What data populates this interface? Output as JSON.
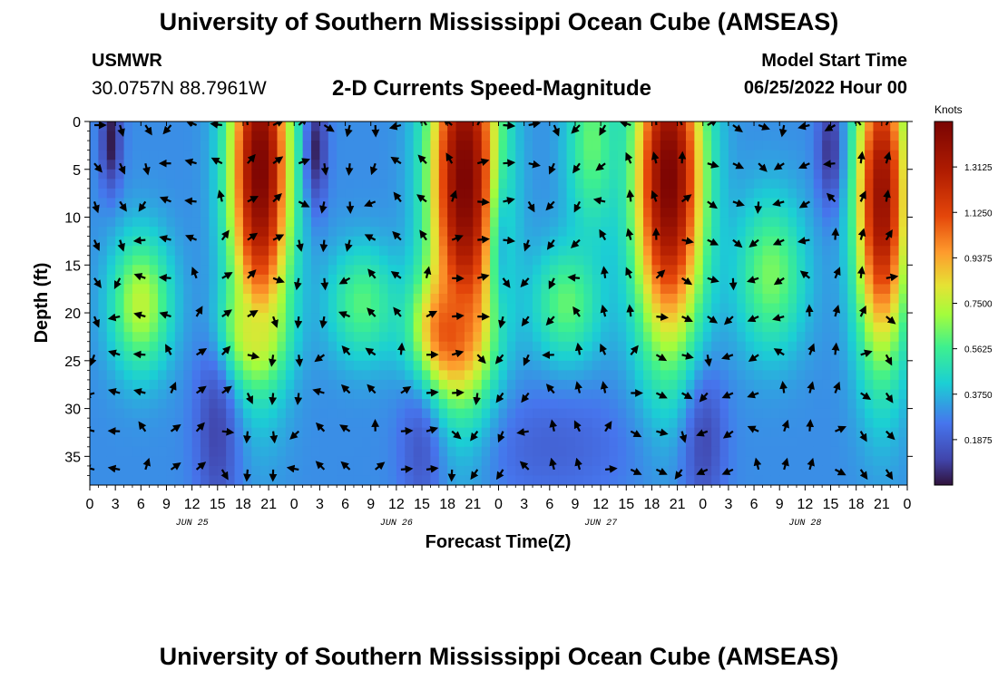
{
  "header": {
    "title": "University of Southern Mississippi Ocean Cube (AMSEAS)",
    "station": "USMWR",
    "coords": "30.0757N  88.7961W",
    "plot_title": "2-D Currents Speed-Magnitude",
    "model_start_label": "Model Start Time",
    "model_start_value": "06/25/2022 Hour 00"
  },
  "footer": {
    "title": "University of Southern Mississippi Ocean Cube (AMSEAS)"
  },
  "chart_data": {
    "type": "heatmap",
    "title": "2-D Currents Speed-Magnitude",
    "xlabel": "Forecast Time(Z)",
    "ylabel": "Depth (ft)",
    "x_range_hours": [
      0,
      96
    ],
    "y_range_ft": [
      0,
      38
    ],
    "x_tick_hours": [
      0,
      3,
      6,
      9,
      12,
      15,
      18,
      21,
      24,
      27,
      30,
      33,
      36,
      39,
      42,
      45,
      48,
      51,
      54,
      57,
      60,
      63,
      66,
      69,
      72,
      75,
      78,
      81,
      84,
      87,
      90,
      93,
      96
    ],
    "x_tick_labels": [
      "0",
      "3",
      "6",
      "9",
      "12",
      "15",
      "18",
      "21",
      "0",
      "3",
      "6",
      "9",
      "12",
      "15",
      "18",
      "21",
      "0",
      "3",
      "6",
      "9",
      "12",
      "15",
      "18",
      "21",
      "0",
      "3",
      "6",
      "9",
      "12",
      "15",
      "18",
      "21",
      "0"
    ],
    "date_labels": [
      {
        "hour": 12,
        "label": "JUN 25"
      },
      {
        "hour": 36,
        "label": "JUN 26"
      },
      {
        "hour": 60,
        "label": "JUN 27"
      },
      {
        "hour": 84,
        "label": "JUN 28"
      }
    ],
    "y_ticks": [
      0,
      5,
      10,
      15,
      20,
      25,
      30,
      35
    ],
    "y_tick_labels": [
      "0",
      "5",
      "10",
      "15",
      "20",
      "25",
      "30",
      "35"
    ],
    "colorbar": {
      "unit": "Knots",
      "min": 0,
      "max": 1.5,
      "tick_values": [
        0.1875,
        0.375,
        0.5625,
        0.75,
        0.9375,
        1.125,
        1.3125
      ],
      "tick_labels": [
        "0.1875",
        "0.3750",
        "0.5625",
        "0.7500",
        "0.9375",
        "1.1250",
        "1.3125"
      ]
    },
    "speed_model": {
      "background": 0.3,
      "cores": [
        {
          "center_hour": 20,
          "center_depth": 5,
          "hour_halfwidth": 3.5,
          "depth_halfwidth": 17,
          "peak": 1.5
        },
        {
          "center_hour": 44,
          "center_depth": 6,
          "hour_halfwidth": 4,
          "depth_halfwidth": 19,
          "peak": 1.5
        },
        {
          "center_hour": 68,
          "center_depth": 6,
          "hour_halfwidth": 4,
          "depth_halfwidth": 17,
          "peak": 1.5
        },
        {
          "center_hour": 93,
          "center_depth": 8,
          "hour_halfwidth": 3,
          "depth_halfwidth": 16,
          "peak": 1.4
        },
        {
          "center_hour": 6,
          "center_depth": 19,
          "hour_halfwidth": 3.5,
          "depth_halfwidth": 7,
          "peak": 0.75
        },
        {
          "center_hour": 32,
          "center_depth": 19,
          "hour_halfwidth": 4,
          "depth_halfwidth": 6,
          "peak": 0.6
        },
        {
          "center_hour": 56,
          "center_depth": 19,
          "hour_halfwidth": 4,
          "depth_halfwidth": 6,
          "peak": 0.62
        },
        {
          "center_hour": 80,
          "center_depth": 16,
          "hour_halfwidth": 4,
          "depth_halfwidth": 8,
          "peak": 0.65
        },
        {
          "center_hour": 59,
          "center_depth": 2,
          "hour_halfwidth": 3,
          "depth_halfwidth": 10,
          "peak": 0.62
        },
        {
          "center_hour": 42,
          "center_depth": 22,
          "hour_halfwidth": 4,
          "depth_halfwidth": 6,
          "peak": 1.1
        },
        {
          "center_hour": 19,
          "center_depth": 22,
          "hour_halfwidth": 3.5,
          "depth_halfwidth": 5,
          "peak": 0.8
        }
      ],
      "troughs": [
        {
          "center_hour": 2.5,
          "center_depth": 2,
          "hour_halfwidth": 1.2,
          "depth_halfwidth": 5,
          "depth": 0.3
        },
        {
          "center_hour": 26.5,
          "center_depth": 3,
          "hour_halfwidth": 1.3,
          "depth_halfwidth": 6,
          "depth": 0.3
        },
        {
          "center_hour": 15,
          "center_depth": 32,
          "hour_halfwidth": 2.5,
          "depth_halfwidth": 10,
          "depth": 0.2
        },
        {
          "center_hour": 39,
          "center_depth": 33,
          "hour_halfwidth": 2.5,
          "depth_halfwidth": 9,
          "depth": 0.15
        },
        {
          "center_hour": 48,
          "center_depth": 12,
          "hour_halfwidth": 1.2,
          "depth_halfwidth": 8,
          "depth": 0.25
        },
        {
          "center_hour": 72,
          "center_depth": 33,
          "hour_halfwidth": 2.5,
          "depth_halfwidth": 8,
          "depth": 0.2
        },
        {
          "center_hour": 87,
          "center_depth": 3,
          "hour_halfwidth": 1.5,
          "depth_halfwidth": 6,
          "depth": 0.25
        },
        {
          "center_hour": 54,
          "center_depth": 34,
          "hour_halfwidth": 10,
          "depth_halfwidth": 6,
          "depth": 0.1
        }
      ]
    },
    "vectors": {
      "depths_ft": [
        0,
        4,
        8,
        12,
        16,
        20,
        24,
        28,
        32,
        36
      ],
      "hours": [
        0,
        3,
        6,
        9,
        12,
        15,
        18,
        21,
        24,
        27,
        30,
        33,
        36,
        39,
        42,
        45,
        48,
        51,
        54,
        57,
        60,
        63,
        66,
        69,
        72,
        75,
        78,
        81,
        84,
        87,
        90,
        93
      ],
      "direction_model": "rotating tidal flow, direction changes with time and depth"
    }
  }
}
